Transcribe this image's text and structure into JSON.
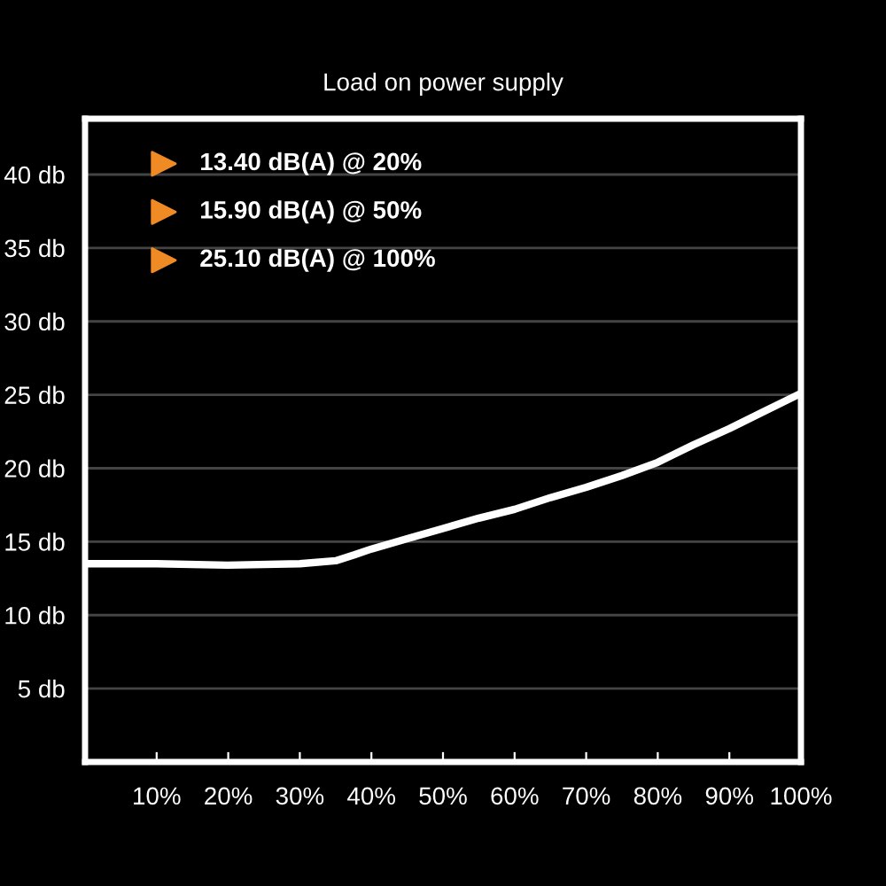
{
  "chart_data": {
    "type": "line",
    "title": "Load on power supply",
    "x": [
      0,
      10,
      20,
      30,
      35,
      37.6,
      40,
      45,
      50,
      55,
      60,
      65,
      70,
      75,
      80,
      85,
      90,
      95,
      100
    ],
    "series": [
      {
        "color": "#ffffff",
        "values": [
          13.5,
          13.5,
          13.4,
          13.5,
          13.7,
          14.1,
          14.5,
          15.2,
          15.9,
          16.6,
          17.2,
          18.0,
          18.7,
          19.5,
          20.4,
          21.6,
          22.7,
          23.9,
          25.1
        ]
      }
    ],
    "xlim": [
      0,
      100
    ],
    "xticks": [
      {
        "value": 10,
        "label": "10%"
      },
      {
        "value": 20,
        "label": "20%"
      },
      {
        "value": 30,
        "label": "30%"
      },
      {
        "value": 40,
        "label": "40%"
      },
      {
        "value": 50,
        "label": "50%"
      },
      {
        "value": 60,
        "label": "60%"
      },
      {
        "value": 70,
        "label": "70%"
      },
      {
        "value": 80,
        "label": "80%"
      },
      {
        "value": 90,
        "label": "90%"
      },
      {
        "value": 100,
        "label": "100%"
      }
    ],
    "ylim": [
      0,
      43.8
    ],
    "yticks": [
      {
        "value": 5,
        "label": "5 db"
      },
      {
        "value": 10,
        "label": "10 db"
      },
      {
        "value": 15,
        "label": "15 db"
      },
      {
        "value": 20,
        "label": "20 db"
      },
      {
        "value": 25,
        "label": "25 db"
      },
      {
        "value": 30,
        "label": "30 db"
      },
      {
        "value": 35,
        "label": "35 db"
      },
      {
        "value": 40,
        "label": "40 db"
      }
    ],
    "annotations": [
      "13.40 dB(A) @ 20%",
      "15.90 dB(A) @ 50%",
      "25.10 dB(A) @ 100%"
    ],
    "grid": "y",
    "marker": "none",
    "line_style": "solid",
    "legend": false
  }
}
